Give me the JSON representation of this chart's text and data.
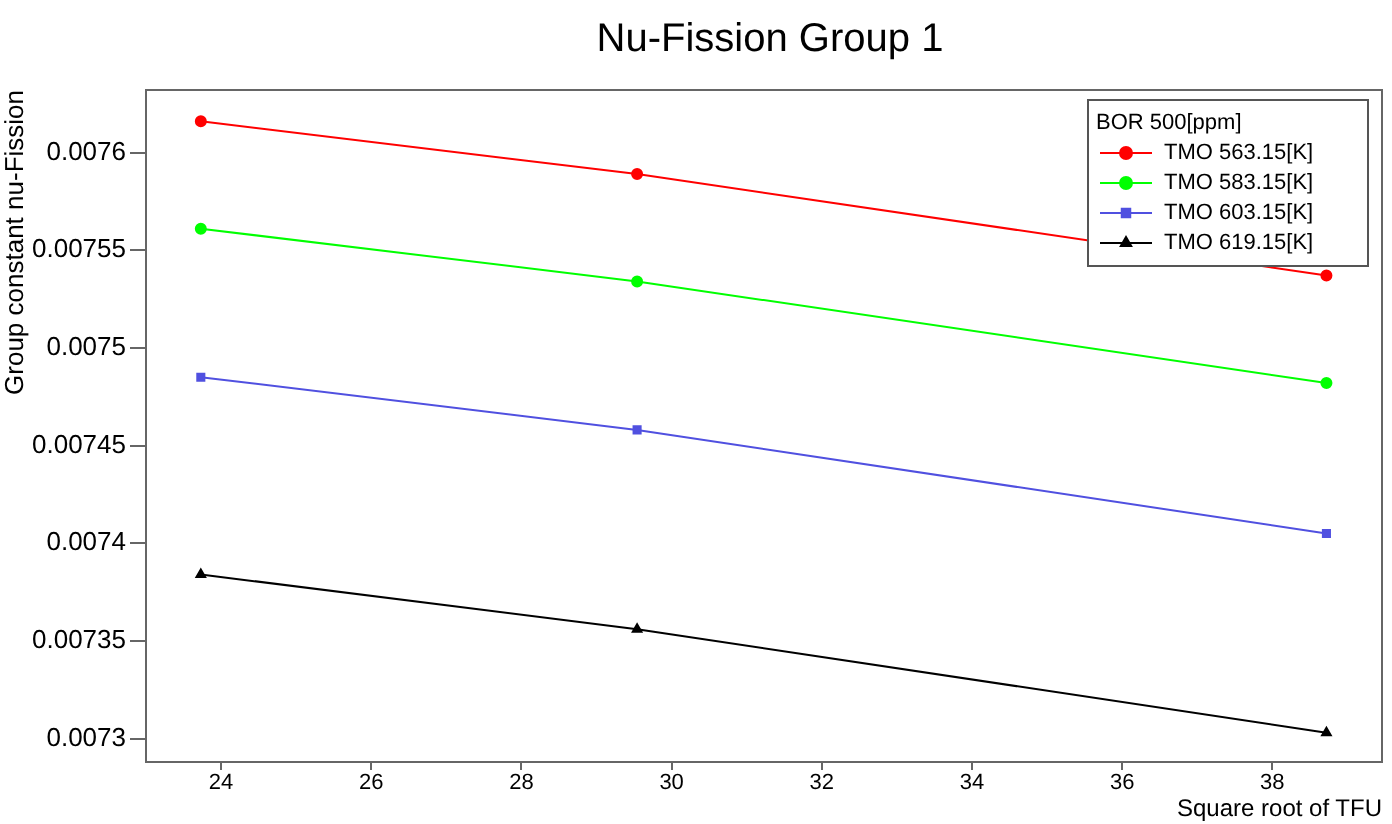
{
  "chart_data": {
    "type": "line",
    "title": "Nu-Fission Group 1",
    "xlabel": "Square root of TFU",
    "ylabel": "Group constant nu-Fission",
    "legend_title": "BOR 500[ppm]",
    "legend": "top right",
    "grid": false,
    "x": [
      23.73,
      29.54,
      38.72
    ],
    "series": [
      {
        "name": "TMO 563.15[K]",
        "color": "#ff0000",
        "marker": "circle",
        "values": [
          0.007616,
          0.007589,
          0.007537
        ]
      },
      {
        "name": "TMO 583.15[K]",
        "color": "#00ff00",
        "marker": "circle",
        "values": [
          0.007561,
          0.007534,
          0.007482
        ]
      },
      {
        "name": "TMO 603.15[K]",
        "color": "#5050e0",
        "marker": "square",
        "values": [
          0.007485,
          0.007458,
          0.007405
        ]
      },
      {
        "name": "TMO 619.15[K]",
        "color": "#000000",
        "marker": "triangle",
        "values": [
          0.007384,
          0.007356,
          0.007303
        ]
      }
    ],
    "xlim": [
      23,
      39.46
    ],
    "xticks": [
      24,
      26,
      28,
      30,
      32,
      34,
      36,
      38
    ],
    "ylim": [
      0.007288,
      0.007632
    ],
    "yticks": [
      0.0073,
      0.00735,
      0.0074,
      0.00745,
      0.0075,
      0.00755,
      0.0076
    ]
  }
}
